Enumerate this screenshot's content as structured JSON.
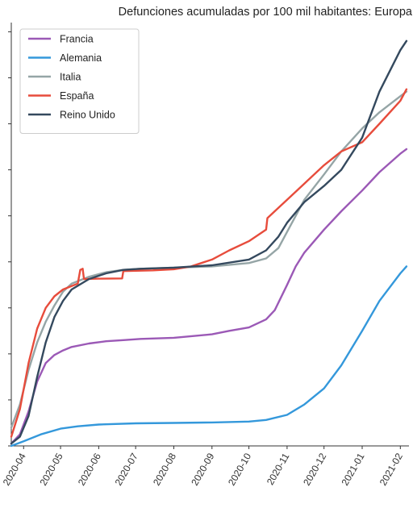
{
  "chart_data": {
    "type": "line",
    "title": "Defunciones acumuladas por 100 mil habitantes: Europa",
    "xlabel": "",
    "ylabel": "",
    "x_tick_labels": [
      "2020-04",
      "2020-05",
      "2020-06",
      "2020-07",
      "2020-08",
      "2020-09",
      "2020-10",
      "2020-11",
      "2020-12",
      "2021-01",
      "2021-02"
    ],
    "y_tick_values": [
      0,
      20,
      40,
      60,
      80,
      100,
      120,
      140,
      160,
      180
    ],
    "y_tick_labels_visible": false,
    "xlim": [
      "2020-03-22",
      "2021-02-08"
    ],
    "ylim": [
      0,
      184
    ],
    "grid": false,
    "legend_position": "top-left",
    "series": [
      {
        "name": "Francia",
        "color": "#9b59b6",
        "points": [
          [
            "2020-03-22",
            1
          ],
          [
            "2020-03-29",
            5
          ],
          [
            "2020-04-05",
            15
          ],
          [
            "2020-04-12",
            28
          ],
          [
            "2020-04-19",
            36
          ],
          [
            "2020-04-26",
            39.5
          ],
          [
            "2020-05-03",
            41.5
          ],
          [
            "2020-05-10",
            43
          ],
          [
            "2020-05-24",
            44.5
          ],
          [
            "2020-06-07",
            45.5
          ],
          [
            "2020-06-21",
            46
          ],
          [
            "2020-07-05",
            46.5
          ],
          [
            "2020-08-01",
            47
          ],
          [
            "2020-09-01",
            48.5
          ],
          [
            "2020-09-15",
            50
          ],
          [
            "2020-10-01",
            51.5
          ],
          [
            "2020-10-15",
            55
          ],
          [
            "2020-10-22",
            59
          ],
          [
            "2020-11-01",
            70
          ],
          [
            "2020-11-08",
            78
          ],
          [
            "2020-11-15",
            84
          ],
          [
            "2020-12-01",
            94
          ],
          [
            "2020-12-15",
            102
          ],
          [
            "2021-01-01",
            111
          ],
          [
            "2021-01-15",
            119
          ],
          [
            "2021-02-01",
            127
          ],
          [
            "2021-02-06",
            129
          ]
        ]
      },
      {
        "name": "Alemania",
        "color": "#3498db",
        "points": [
          [
            "2020-03-22",
            0
          ],
          [
            "2020-04-01",
            2
          ],
          [
            "2020-04-15",
            5
          ],
          [
            "2020-05-01",
            7.5
          ],
          [
            "2020-05-15",
            8.5
          ],
          [
            "2020-06-01",
            9.3
          ],
          [
            "2020-07-01",
            9.8
          ],
          [
            "2020-08-01",
            10
          ],
          [
            "2020-09-01",
            10.2
          ],
          [
            "2020-10-01",
            10.6
          ],
          [
            "2020-10-15",
            11.3
          ],
          [
            "2020-11-01",
            13.5
          ],
          [
            "2020-11-15",
            18
          ],
          [
            "2020-12-01",
            25
          ],
          [
            "2020-12-15",
            35
          ],
          [
            "2021-01-01",
            50
          ],
          [
            "2021-01-15",
            63
          ],
          [
            "2021-02-01",
            75
          ],
          [
            "2021-02-06",
            78
          ]
        ]
      },
      {
        "name": "Italia",
        "color": "#95a5a6",
        "points": [
          [
            "2020-03-22",
            8
          ],
          [
            "2020-03-29",
            18
          ],
          [
            "2020-04-05",
            33
          ],
          [
            "2020-04-12",
            45
          ],
          [
            "2020-04-19",
            54
          ],
          [
            "2020-04-26",
            61
          ],
          [
            "2020-05-03",
            67
          ],
          [
            "2020-05-10",
            70.5
          ],
          [
            "2020-05-24",
            73.5
          ],
          [
            "2020-06-07",
            75.5
          ],
          [
            "2020-06-21",
            76.5
          ],
          [
            "2020-07-05",
            77
          ],
          [
            "2020-08-01",
            77.5
          ],
          [
            "2020-09-01",
            78
          ],
          [
            "2020-10-01",
            79.5
          ],
          [
            "2020-10-15",
            81.5
          ],
          [
            "2020-10-25",
            86
          ],
          [
            "2020-11-01",
            93
          ],
          [
            "2020-11-08",
            100
          ],
          [
            "2020-11-15",
            107
          ],
          [
            "2020-12-01",
            118
          ],
          [
            "2020-12-15",
            128
          ],
          [
            "2021-01-01",
            138
          ],
          [
            "2021-01-15",
            145
          ],
          [
            "2021-02-01",
            152
          ],
          [
            "2021-02-06",
            154
          ]
        ]
      },
      {
        "name": "España",
        "color": "#e74c3c",
        "points": [
          [
            "2020-03-22",
            4
          ],
          [
            "2020-03-29",
            16
          ],
          [
            "2020-04-05",
            36
          ],
          [
            "2020-04-12",
            51
          ],
          [
            "2020-04-19",
            60
          ],
          [
            "2020-04-26",
            65
          ],
          [
            "2020-05-03",
            68
          ],
          [
            "2020-05-10",
            69.5
          ],
          [
            "2020-05-15",
            70.5
          ],
          [
            "2020-05-17",
            76.5
          ],
          [
            "2020-05-19",
            77
          ],
          [
            "2020-05-20",
            72.5
          ],
          [
            "2020-06-01",
            72.7
          ],
          [
            "2020-06-20",
            72.8
          ],
          [
            "2020-06-21",
            76
          ],
          [
            "2020-07-15",
            76.3
          ],
          [
            "2020-08-01",
            76.8
          ],
          [
            "2020-08-15",
            78
          ],
          [
            "2020-09-01",
            81
          ],
          [
            "2020-09-15",
            85
          ],
          [
            "2020-10-01",
            89
          ],
          [
            "2020-10-15",
            94
          ],
          [
            "2020-10-16",
            99
          ],
          [
            "2020-11-01",
            107
          ],
          [
            "2020-11-15",
            114
          ],
          [
            "2020-12-01",
            122
          ],
          [
            "2020-12-15",
            128
          ],
          [
            "2021-01-01",
            132
          ],
          [
            "2021-01-15",
            140
          ],
          [
            "2021-02-01",
            150
          ],
          [
            "2021-02-06",
            155
          ]
        ]
      },
      {
        "name": "Reino Unido",
        "color": "#34495e",
        "points": [
          [
            "2020-03-22",
            1
          ],
          [
            "2020-03-29",
            4
          ],
          [
            "2020-04-05",
            13
          ],
          [
            "2020-04-12",
            30
          ],
          [
            "2020-04-19",
            45
          ],
          [
            "2020-04-26",
            56
          ],
          [
            "2020-05-03",
            63
          ],
          [
            "2020-05-10",
            68
          ],
          [
            "2020-05-24",
            72.5
          ],
          [
            "2020-06-07",
            75
          ],
          [
            "2020-06-21",
            76.5
          ],
          [
            "2020-07-05",
            77
          ],
          [
            "2020-08-01",
            77.5
          ],
          [
            "2020-09-01",
            78.5
          ],
          [
            "2020-10-01",
            81
          ],
          [
            "2020-10-15",
            85
          ],
          [
            "2020-10-25",
            91
          ],
          [
            "2020-11-01",
            97
          ],
          [
            "2020-11-15",
            106
          ],
          [
            "2020-12-01",
            113
          ],
          [
            "2020-12-15",
            120
          ],
          [
            "2021-01-01",
            134
          ],
          [
            "2021-01-15",
            154
          ],
          [
            "2021-02-01",
            172
          ],
          [
            "2021-02-06",
            176
          ]
        ]
      }
    ]
  }
}
